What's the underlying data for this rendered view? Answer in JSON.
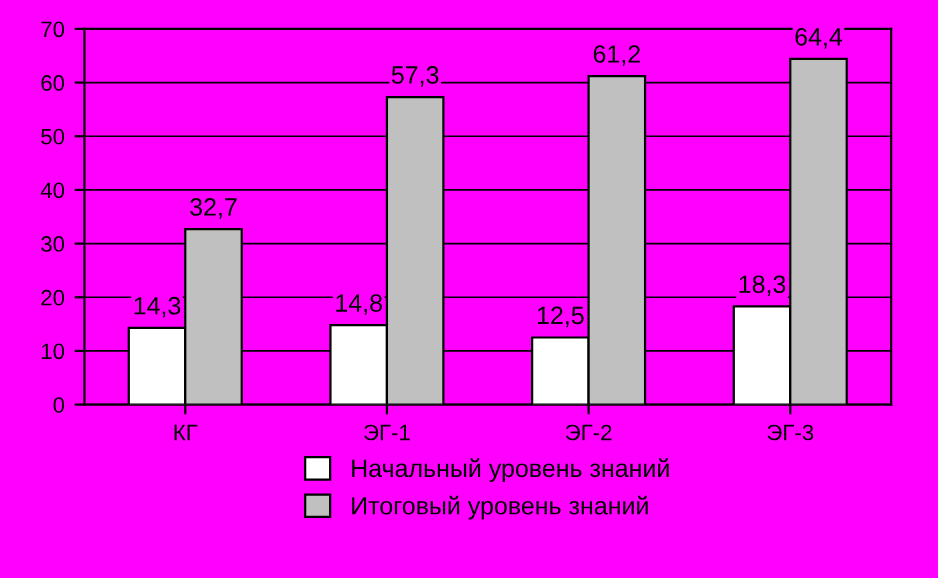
{
  "chart_data": {
    "type": "bar",
    "categories": [
      "КГ",
      "ЭГ-1",
      "ЭГ-2",
      "ЭГ-3"
    ],
    "series": [
      {
        "name": "Начальный уровень знаний",
        "color": "#ffffff",
        "values": [
          14.3,
          14.8,
          12.5,
          18.3
        ],
        "value_labels": [
          "14,3",
          "14,8",
          "12,5",
          "18,3"
        ]
      },
      {
        "name": "Итоговый уровень знаний",
        "color": "#c0c0c0",
        "values": [
          32.7,
          57.3,
          61.2,
          64.4
        ],
        "value_labels": [
          "32,7",
          "57,3",
          "61,2",
          "64,4"
        ]
      }
    ],
    "ylim": [
      0,
      70
    ],
    "yticks": [
      0,
      10,
      20,
      30,
      40,
      50,
      60,
      70
    ],
    "grid": "y",
    "legend": "bottom"
  }
}
